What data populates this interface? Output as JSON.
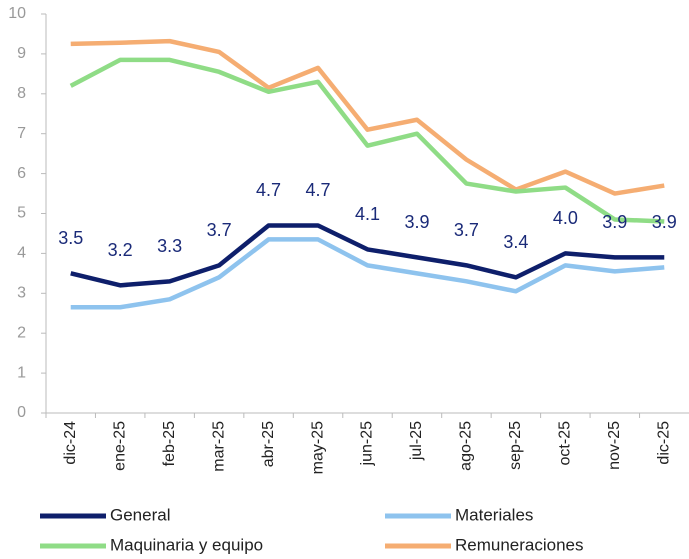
{
  "chart_data": {
    "type": "line",
    "categories": [
      "dic-24",
      "ene-25",
      "feb-25",
      "mar-25",
      "abr-25",
      "may-25",
      "jun-25",
      "jul-25",
      "ago-25",
      "sep-25",
      "oct-25",
      "nov-25",
      "dic-25"
    ],
    "series": [
      {
        "name": "General",
        "color": "#0e1f6b",
        "values": [
          3.5,
          3.2,
          3.3,
          3.7,
          4.7,
          4.7,
          4.1,
          3.9,
          3.7,
          3.4,
          4.0,
          3.9,
          3.9
        ],
        "value_labels": [
          "3.5",
          "3.2",
          "3.3",
          "3.7",
          "4.7",
          "4.7",
          "4.1",
          "3.9",
          "3.7",
          "3.4",
          "4.0",
          "3.9",
          "3.9"
        ]
      },
      {
        "name": "Materiales",
        "color": "#8ec3ee",
        "values": [
          2.65,
          2.65,
          2.85,
          3.4,
          4.35,
          4.35,
          3.7,
          3.5,
          3.3,
          3.05,
          3.7,
          3.55,
          3.65
        ]
      },
      {
        "name": "Maquinaria y equipo",
        "color": "#8fdc86",
        "values": [
          8.2,
          8.85,
          8.85,
          8.55,
          8.05,
          8.3,
          6.7,
          7.0,
          5.75,
          5.55,
          5.65,
          4.85,
          4.8
        ]
      },
      {
        "name": "Remuneraciones",
        "color": "#f5ad72",
        "values": [
          9.25,
          9.28,
          9.32,
          9.05,
          8.15,
          8.65,
          7.1,
          7.35,
          6.35,
          5.6,
          6.05,
          5.5,
          5.7
        ]
      }
    ],
    "ylim": [
      0,
      10
    ],
    "yticks": [
      0,
      1,
      2,
      3,
      4,
      5,
      6,
      7,
      8,
      9,
      10
    ],
    "legend": "bottom"
  }
}
